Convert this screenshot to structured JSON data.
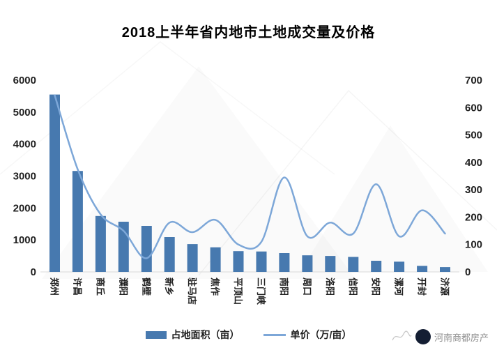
{
  "title": "2018上半年省内地市土地成交量及价格",
  "colors": {
    "bar": "#4779AF",
    "line": "#7DA7D8",
    "axis_text": "#1f1f1f",
    "watermark_text": "#8f8f8f",
    "watermark_circle": "#141e33"
  },
  "legend": {
    "bar_label": "占地面积（亩）",
    "line_label": "单价（万/亩）"
  },
  "watermark": {
    "text": "河南商都房产"
  },
  "chart_data": {
    "type": "combo",
    "title": "2018上半年省内地市土地成交量及价格",
    "categories": [
      "郑州",
      "许昌",
      "商丘",
      "濮阳",
      "鹤壁",
      "新乡",
      "驻马店",
      "焦作",
      "平顶山",
      "三门峡",
      "南阳",
      "周口",
      "洛阳",
      "信阳",
      "安阳",
      "漯河",
      "开封",
      "济源"
    ],
    "series": [
      {
        "name": "占地面积（亩）",
        "type": "bar",
        "axis": "left",
        "values": [
          5550,
          3160,
          1750,
          1570,
          1440,
          1090,
          870,
          770,
          650,
          640,
          590,
          520,
          500,
          470,
          350,
          320,
          190,
          150
        ]
      },
      {
        "name": "单价（万/亩）",
        "type": "line",
        "axis": "right",
        "values": [
          645,
          375,
          210,
          150,
          50,
          180,
          145,
          190,
          100,
          110,
          345,
          130,
          180,
          140,
          320,
          130,
          225,
          140
        ]
      }
    ],
    "left_axis": {
      "min": 0,
      "max": 6000,
      "step": 1000,
      "ticks": [
        0,
        1000,
        2000,
        3000,
        4000,
        5000,
        6000
      ]
    },
    "right_axis": {
      "min": 0,
      "max": 700,
      "step": 100,
      "ticks": [
        0,
        100,
        200,
        300,
        400,
        500,
        600,
        700
      ]
    },
    "grid": false,
    "legend_position": "bottom",
    "line_smooth": true
  }
}
